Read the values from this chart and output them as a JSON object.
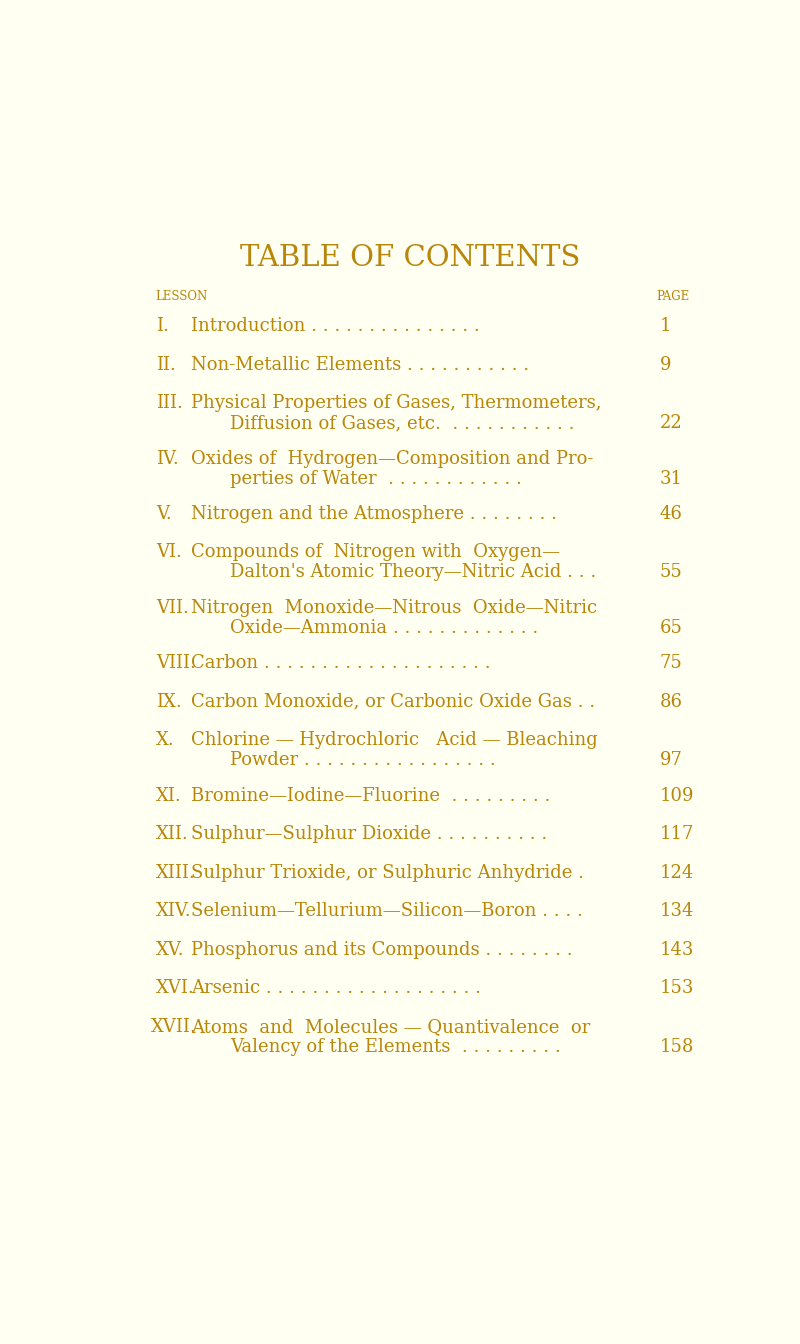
{
  "bg_color": "#fffff2",
  "text_color": "#b8860b",
  "title": "TABLE OF CONTENTS",
  "header_lesson": "LESSON",
  "header_page": "PAGE",
  "entries": [
    {
      "roman": "I.",
      "line1": "Introduction . . . . . . . . . . . . . . .",
      "line2": null,
      "page": "1",
      "prefix_indent": false
    },
    {
      "roman": "II.",
      "line1": "Non-Metallic Elements . . . . . . . . . . .",
      "line2": null,
      "page": "9",
      "prefix_indent": false
    },
    {
      "roman": "III.",
      "line1": "Physical Properties of Gases, Thermometers,",
      "line2": "Diffusion of Gases, etc.  . . . . . . . . . . .",
      "page": "22",
      "prefix_indent": false
    },
    {
      "roman": "IV.",
      "line1": "Oxides of  Hydrogen—Composition and Pro-",
      "line2": "perties of Water  . . . . . . . . . . . .",
      "page": "31",
      "prefix_indent": false
    },
    {
      "roman": "V.",
      "line1": "Nitrogen and the Atmosphere . . . . . . . .",
      "line2": null,
      "page": "46",
      "prefix_indent": false
    },
    {
      "roman": "VI.",
      "line1": "Compounds of  Nitrogen with  Oxygen—",
      "line2": "Dalton's Atomic Theory—Nitric Acid . . .",
      "page": "55",
      "prefix_indent": false
    },
    {
      "roman": "VII.",
      "line1": "Nitrogen  Monoxide—Nitrous  Oxide—Nitric",
      "line2": "Oxide—Ammonia . . . . . . . . . . . . .",
      "page": "65",
      "prefix_indent": false
    },
    {
      "roman": "VIII.",
      "line1": "Carbon . . . . . . . . . . . . . . . . . . . .",
      "line2": null,
      "page": "75",
      "prefix_indent": false
    },
    {
      "roman": "IX.",
      "line1": "Carbon Monoxide, or Carbonic Oxide Gas . .",
      "line2": null,
      "page": "86",
      "prefix_indent": false
    },
    {
      "roman": "X.",
      "line1": "Chlorine — Hydrochloric   Acid — Bleaching",
      "line2": "Powder . . . . . . . . . . . . . . . . .",
      "page": "97",
      "prefix_indent": false
    },
    {
      "roman": "XI.",
      "line1": "Bromine—Iodine—Fluorine  . . . . . . . . .",
      "line2": null,
      "page": "109",
      "prefix_indent": false
    },
    {
      "roman": "XII.",
      "line1": "Sulphur—Sulphur Dioxide . . . . . . . . . .",
      "line2": null,
      "page": "117",
      "prefix_indent": false
    },
    {
      "roman": "XIII.",
      "line1": "Sulphur Trioxide, or Sulphuric Anhydride .",
      "line2": null,
      "page": "124",
      "prefix_indent": false
    },
    {
      "roman": "XIV.",
      "line1": "Selenium—Tellurium—Silicon—Boron . . . .",
      "line2": null,
      "page": "134",
      "prefix_indent": false
    },
    {
      "roman": "XV.",
      "line1": "Phosphorus and its Compounds . . . . . . . .",
      "line2": null,
      "page": "143",
      "prefix_indent": false
    },
    {
      "roman": "XVI.",
      "line1": "Arsenic . . . . . . . . . . . . . . . . . . .",
      "line2": null,
      "page": "153",
      "prefix_indent": false
    },
    {
      "roman": "XVII.",
      "line1": "Atoms  and  Molecules — Quantivalence  or",
      "line2": "Valency of the Elements  . . . . . . . . .",
      "page": "158",
      "prefix_indent": true
    }
  ]
}
